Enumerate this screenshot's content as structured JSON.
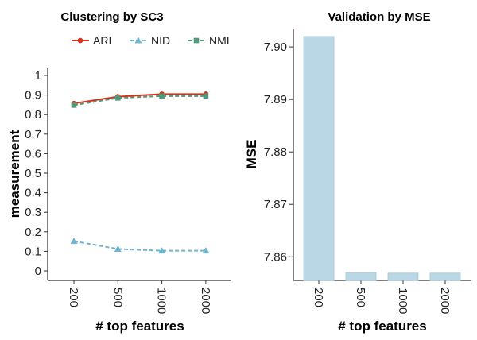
{
  "colors": {
    "ARI": "#d7301f",
    "NID": "#6fb4d0",
    "NMI": "#4e9a7a",
    "bar_fill": "#b9d7e5",
    "bar_stroke": "#a9c4d2"
  },
  "chart_data": [
    {
      "type": "line",
      "title": "Clustering by SC3",
      "xlabel": "# top features",
      "ylabel": "measurement",
      "categories": [
        "200",
        "500",
        "1000",
        "2000"
      ],
      "ylim": [
        0,
        1
      ],
      "yticks": [
        "0",
        "0.1",
        "0.2",
        "0.3",
        "0.4",
        "0.5",
        "0.6",
        "0.7",
        "0.8",
        "0.9",
        "1"
      ],
      "legend_position": "top",
      "grid": false,
      "series": [
        {
          "name": "ARI",
          "marker": "circle",
          "line": "solid",
          "values": [
            0.857,
            0.892,
            0.905,
            0.905
          ]
        },
        {
          "name": "NID",
          "marker": "triangle",
          "line": "dashed",
          "values": [
            0.152,
            0.112,
            0.103,
            0.103
          ]
        },
        {
          "name": "NMI",
          "marker": "square",
          "line": "dashed",
          "values": [
            0.848,
            0.885,
            0.895,
            0.895
          ]
        }
      ]
    },
    {
      "type": "bar",
      "title": "Validation by MSE",
      "xlabel": "# top features",
      "ylabel": "MSE",
      "categories": [
        "200",
        "500",
        "1000",
        "2000"
      ],
      "values": [
        7.902,
        7.857,
        7.8569,
        7.8569
      ],
      "ylim": [
        7.8555,
        7.9035
      ],
      "yticks": [
        "7.86",
        "7.87",
        "7.88",
        "7.89",
        "7.90"
      ],
      "grid": false
    }
  ]
}
